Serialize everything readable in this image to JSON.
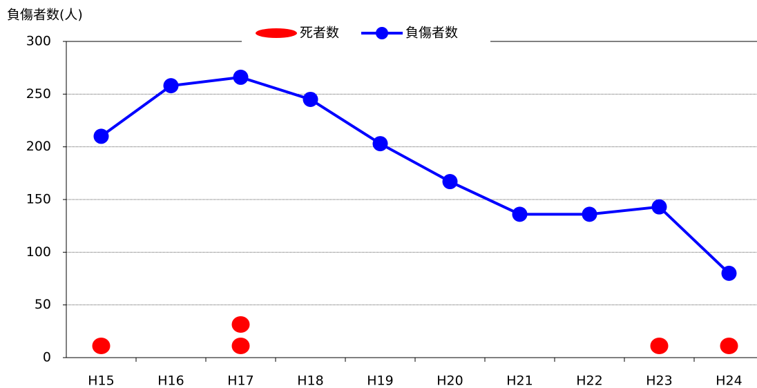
{
  "chart_data": {
    "type": "line",
    "y_label": "負傷者数(人)",
    "categories": [
      "H15",
      "H16",
      "H17",
      "H18",
      "H19",
      "H20",
      "H21",
      "H22",
      "H23",
      "H24"
    ],
    "series": [
      {
        "name": "死者数",
        "color": "#ff0000",
        "type": "dots",
        "values": [
          1,
          0,
          2,
          0,
          0,
          0,
          0,
          0,
          1,
          1
        ]
      },
      {
        "name": "負傷者数",
        "color": "#0000ff",
        "type": "line",
        "values": [
          210,
          258,
          266,
          245,
          203,
          167,
          136,
          136,
          143,
          80
        ]
      }
    ],
    "ylim": [
      0,
      300
    ],
    "yticks": [
      0,
      50,
      100,
      150,
      200,
      250,
      300
    ],
    "grid": true,
    "legend": "top"
  }
}
